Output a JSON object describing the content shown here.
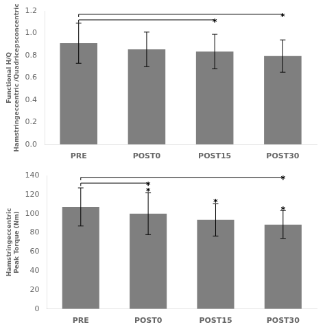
{
  "chart_data": [
    {
      "type": "bar",
      "categories": [
        "PRE",
        "POST0",
        "POST15",
        "POST30"
      ],
      "values": [
        0.91,
        0.855,
        0.835,
        0.795
      ],
      "errors": [
        0.18,
        0.155,
        0.155,
        0.145
      ],
      "color": "#7f7f7f",
      "ylabel": [
        "Functional H/Q",
        "Hamstringeccentric /Quadricepsconcentric"
      ],
      "ylim": [
        0,
        1.2
      ],
      "yticks": [
        {
          "value": 0,
          "label": "0.0"
        },
        0.2,
        0.4,
        0.6,
        0.8,
        {
          "value": 1.0,
          "label": "1.0"
        },
        1.2
      ],
      "grid": false,
      "annotations": [
        {
          "type": "bracket",
          "x1": "PRE",
          "x2": "POST15",
          "y": 1.12,
          "drop": 0.025,
          "text": "*",
          "text_x": "POST15",
          "text_y": 1.125
        },
        {
          "type": "bracket",
          "x1": "PRE",
          "x2": "POST30",
          "y": 1.17,
          "drop": 0.025,
          "text": "*",
          "text_x": "POST30",
          "text_y": 1.175
        }
      ]
    },
    {
      "type": "bar",
      "categories": [
        "PRE",
        "POST0",
        "POST15",
        "POST30"
      ],
      "values": [
        107.0,
        100.0,
        93.5,
        88.5
      ],
      "errors": [
        20.0,
        22.0,
        17.0,
        14.5
      ],
      "color": "#7f7f7f",
      "ylabel": [
        "Hamstringeccentric",
        "Peak Torque (Nm)"
      ],
      "ylim": [
        0,
        140
      ],
      "yticks": [
        0,
        20,
        40,
        60,
        80,
        100,
        120,
        140
      ],
      "grid": false,
      "annotations": [
        {
          "type": "bracket",
          "x1": "PRE",
          "x2": "POST0",
          "y": 132,
          "drop": 3,
          "text": "*",
          "text_x": "POST0",
          "text_y": 133
        },
        {
          "type": "bracket",
          "x1": "PRE",
          "x2": "POST30",
          "y": 138,
          "drop": 3,
          "text": "*",
          "text_x": "POST30",
          "text_y": 139
        },
        {
          "type": "text",
          "text": "*",
          "x": "POST0",
          "y": 126
        },
        {
          "type": "text",
          "text": "*",
          "x": "POST15",
          "y": 115
        },
        {
          "type": "text",
          "text": "*",
          "x": "POST30",
          "y": 107
        }
      ]
    }
  ]
}
